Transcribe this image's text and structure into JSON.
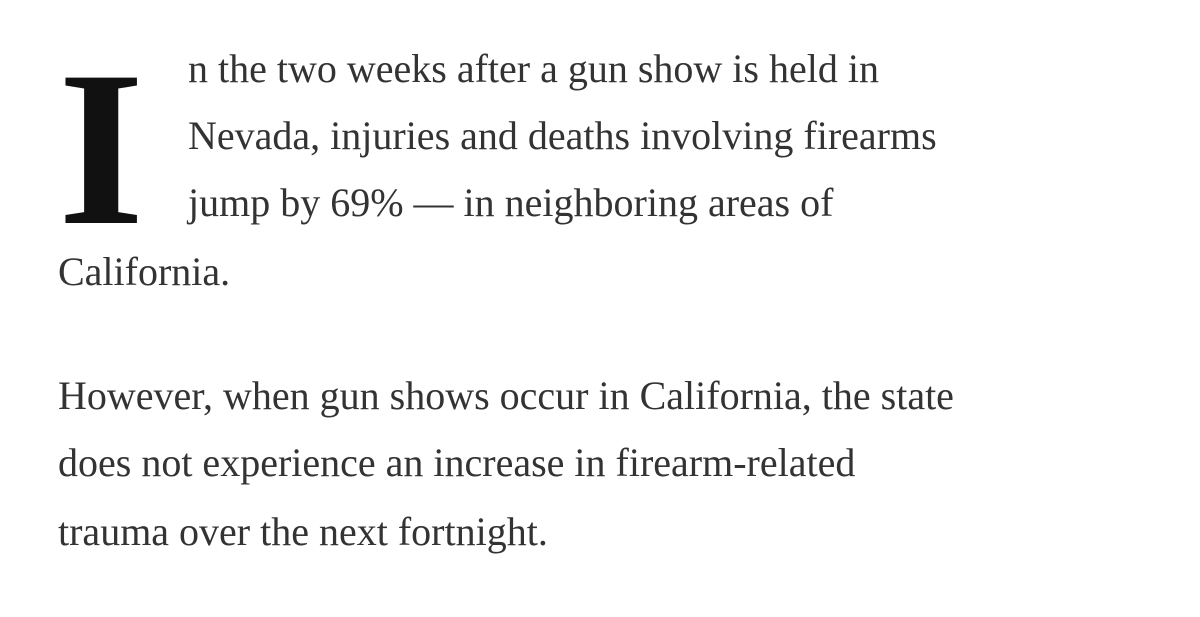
{
  "paragraph1": {
    "drop_cap": "I",
    "lines": [
      "n the two weeks after a gun show is held in",
      "Nevada, injuries and deaths involving firearms",
      "jump by 69% — in neighboring areas of",
      "California."
    ]
  },
  "paragraph2": {
    "lines": [
      "However, when gun shows occur in California, the state",
      "does not experience an increase in firearm-related",
      "trauma over the next fortnight."
    ]
  }
}
